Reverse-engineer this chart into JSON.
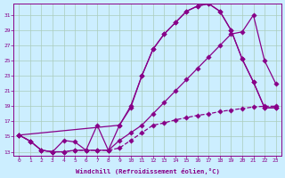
{
  "xlabel": "Windchill (Refroidissement éolien,°C)",
  "background_color": "#cceeff",
  "grid_color": "#aaccbb",
  "line_color": "#880088",
  "xlim_min": -0.5,
  "xlim_max": 23.5,
  "ylim_min": 12.5,
  "ylim_max": 32.5,
  "xticks": [
    0,
    1,
    2,
    3,
    4,
    5,
    6,
    7,
    8,
    9,
    10,
    11,
    12,
    13,
    14,
    15,
    16,
    17,
    18,
    19,
    20,
    21,
    22,
    23
  ],
  "yticks": [
    13,
    15,
    17,
    19,
    21,
    23,
    25,
    27,
    29,
    31
  ],
  "line1_x": [
    0,
    1,
    2,
    3,
    4,
    5,
    6,
    7,
    8,
    9,
    10,
    11,
    12,
    13,
    14,
    15,
    16,
    17,
    18,
    19,
    20,
    21,
    22,
    23
  ],
  "line1_y": [
    15.2,
    14.4,
    13.2,
    13.0,
    13.0,
    13.2,
    13.2,
    13.2,
    13.2,
    16.5,
    18.8,
    23.0,
    26.5,
    28.5,
    30.0,
    31.5,
    32.2,
    32.5,
    31.5,
    29.0,
    25.2,
    22.2,
    18.8,
    18.8
  ],
  "line1_style": "solid",
  "line2_x": [
    0,
    9,
    10,
    11,
    12,
    13,
    14,
    15,
    16,
    17,
    18,
    19,
    20,
    21,
    22,
    23
  ],
  "line2_y": [
    15.2,
    16.5,
    19.0,
    23.0,
    26.5,
    28.5,
    30.0,
    31.5,
    32.2,
    32.5,
    31.5,
    29.0,
    25.2,
    22.2,
    18.8,
    18.8
  ],
  "line2_style": "solid",
  "line3_x": [
    0,
    1,
    2,
    3,
    4,
    5,
    6,
    7,
    8,
    9,
    10,
    11,
    12,
    13,
    14,
    15,
    16,
    17,
    18,
    19,
    20,
    21,
    22,
    23
  ],
  "line3_y": [
    15.2,
    14.4,
    13.2,
    13.0,
    14.5,
    14.3,
    13.2,
    16.5,
    13.2,
    14.5,
    15.5,
    16.5,
    18.0,
    19.5,
    21.0,
    22.5,
    24.0,
    25.5,
    27.0,
    28.5,
    28.8,
    31.0,
    25.0,
    22.0
  ],
  "line3_style": "solid",
  "line4_x": [
    0,
    1,
    2,
    3,
    4,
    5,
    6,
    7,
    8,
    9,
    10,
    11,
    12,
    13,
    14,
    15,
    16,
    17,
    18,
    19,
    20,
    21,
    22,
    23
  ],
  "line4_y": [
    15.2,
    14.4,
    13.2,
    13.0,
    13.0,
    13.2,
    13.2,
    13.2,
    13.2,
    13.5,
    14.5,
    15.5,
    16.5,
    16.8,
    17.2,
    17.5,
    17.8,
    18.0,
    18.3,
    18.5,
    18.7,
    18.9,
    19.0,
    19.0
  ],
  "line4_style": "dashed"
}
